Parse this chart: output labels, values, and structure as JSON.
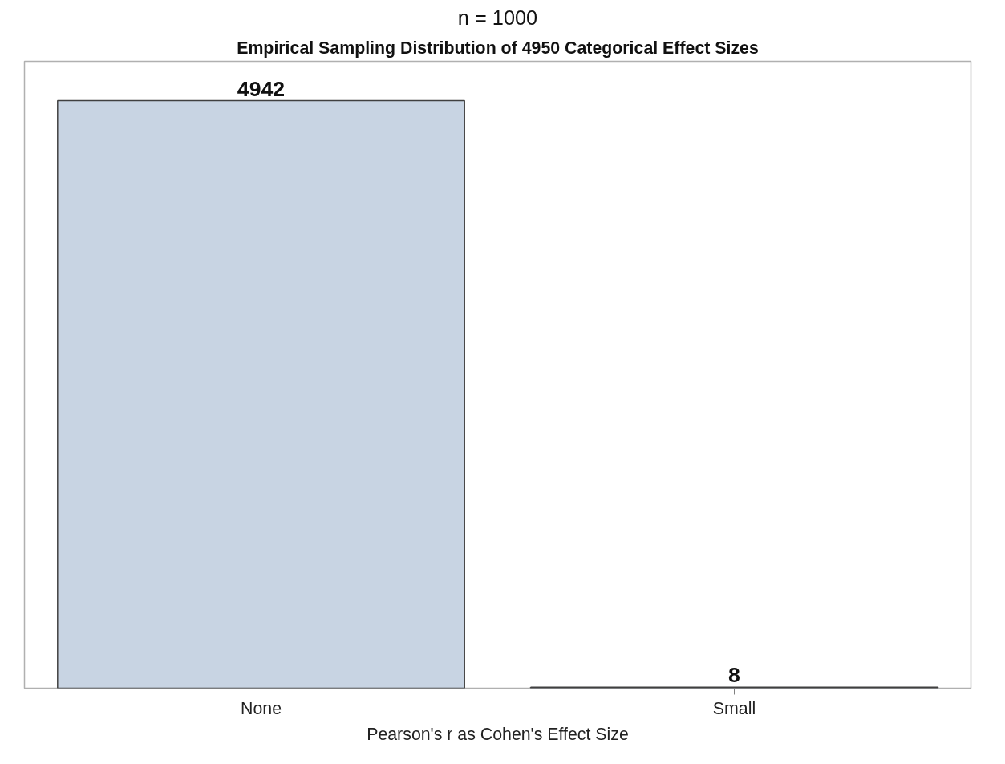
{
  "chart_data": {
    "type": "bar",
    "title": "n = 1000",
    "subtitle": "Empirical Sampling Distribution of 4950 Categorical Effect Sizes",
    "xlabel": "Pearson's r as Cohen's Effect Size",
    "categories": [
      "None",
      "Small"
    ],
    "values": [
      4942,
      8
    ],
    "color": "#c8d4e3",
    "data_labels": true,
    "grid": false
  }
}
